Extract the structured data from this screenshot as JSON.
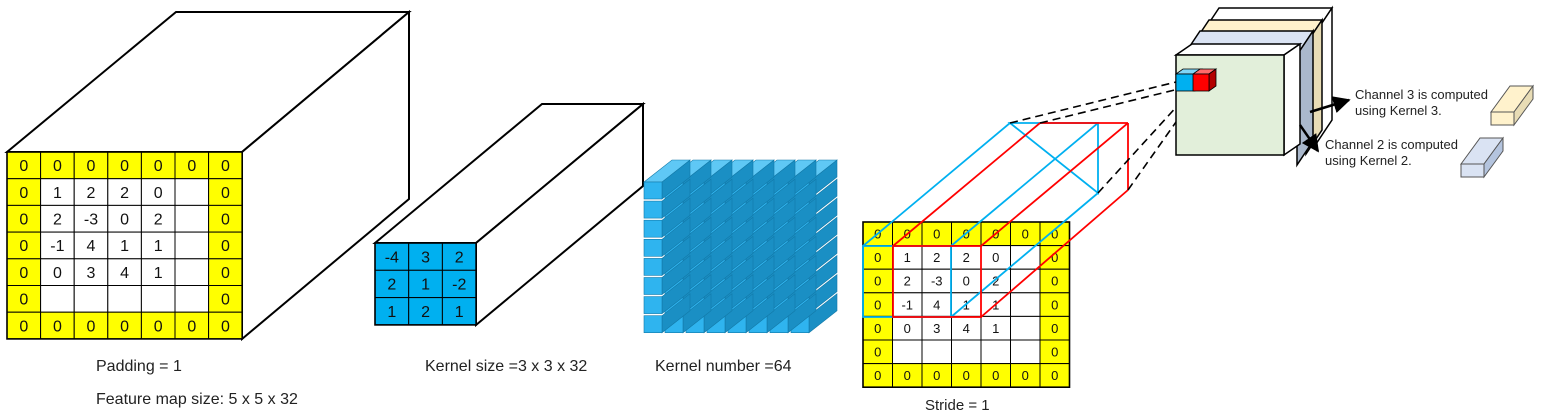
{
  "input_map": {
    "grid": [
      [
        "0",
        "0",
        "0",
        "0",
        "0",
        "0",
        "0"
      ],
      [
        "0",
        "1",
        "2",
        "2",
        "0",
        "",
        "0"
      ],
      [
        "0",
        "2",
        "-3",
        "0",
        "2",
        "",
        "0"
      ],
      [
        "0",
        "-1",
        "4",
        "1",
        "1",
        "",
        "0"
      ],
      [
        "0",
        "0",
        "3",
        "4",
        "1",
        "",
        "0"
      ],
      [
        "0",
        "",
        "",
        "",
        "",
        "",
        "0"
      ],
      [
        "0",
        "0",
        "0",
        "0",
        "0",
        "0",
        "0"
      ]
    ],
    "padding_label": "Padding = 1",
    "size_label": "Feature map size: 5 x 5 x 32"
  },
  "kernel": {
    "grid": [
      [
        "-4",
        "3",
        "2"
      ],
      [
        "2",
        "1",
        "-2"
      ],
      [
        "1",
        "2",
        "1"
      ]
    ],
    "label": "Kernel size =3 x 3 x 32"
  },
  "kernel_stack": {
    "label": "Kernel number =64"
  },
  "conv_map": {
    "grid": [
      [
        "0",
        "0",
        "0",
        "0",
        "0",
        "0",
        "0"
      ],
      [
        "0",
        "1",
        "2",
        "2",
        "0",
        "",
        "0"
      ],
      [
        "0",
        "2",
        "-3",
        "0",
        "2",
        "",
        "0"
      ],
      [
        "0",
        "-1",
        "4",
        "1",
        "1",
        "",
        "0"
      ],
      [
        "0",
        "0",
        "3",
        "4",
        "1",
        "",
        "0"
      ],
      [
        "0",
        "",
        "",
        "",
        "",
        "",
        "0"
      ],
      [
        "0",
        "0",
        "0",
        "0",
        "0",
        "0",
        "0"
      ]
    ],
    "stride_label": "Stride = 1"
  },
  "notes": {
    "channel3": [
      "Channel 3 is computed",
      "using Kernel 3."
    ],
    "channel2": [
      "Channel 2 is computed",
      "using Kernel 2."
    ]
  },
  "colors": {
    "padding": "#ffff00",
    "kernel": "#00b0f0",
    "cube_front": "#2fb4ef",
    "cube_top": "#5fc8f5",
    "cube_side": "#1a8fc4",
    "output_front": "#e2efda",
    "blue_window": "#00b0f0",
    "red_window": "#ff0000",
    "ch3_block": "#fff2cc",
    "ch2_block": "#dae3f3"
  }
}
